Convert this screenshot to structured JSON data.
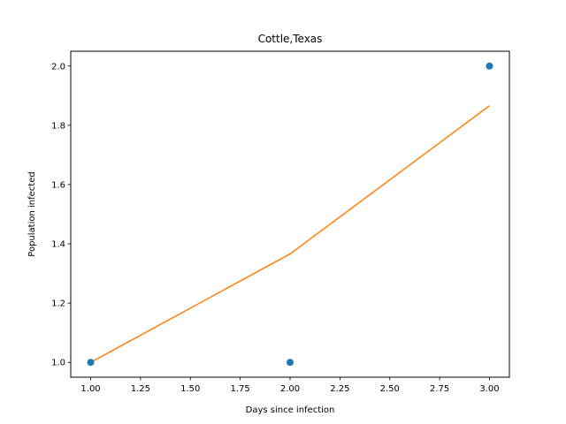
{
  "chart_data": {
    "type": "scatter",
    "title": "Cottle,Texas",
    "xlabel": "Days since infection",
    "ylabel": "Population infected",
    "xlim": [
      0.9,
      3.1
    ],
    "ylim": [
      0.95,
      2.05
    ],
    "xticks": [
      1.0,
      1.25,
      1.5,
      1.75,
      2.0,
      2.25,
      2.5,
      2.75,
      3.0
    ],
    "xtick_labels": [
      "1.00",
      "1.25",
      "1.50",
      "1.75",
      "2.00",
      "2.25",
      "2.50",
      "2.75",
      "3.00"
    ],
    "yticks": [
      1.0,
      1.2,
      1.4,
      1.6,
      1.8,
      2.0
    ],
    "ytick_labels": [
      "1.0",
      "1.2",
      "1.4",
      "1.6",
      "1.8",
      "2.0"
    ],
    "grid": false,
    "series": [
      {
        "kind": "scatter",
        "color": "#1f77b4",
        "x": [
          1,
          2,
          3
        ],
        "y": [
          1,
          1,
          2
        ]
      },
      {
        "kind": "line",
        "color": "#ff7f0e",
        "x": [
          1,
          2,
          3
        ],
        "y": [
          1.0,
          1.366,
          1.866
        ]
      }
    ]
  }
}
